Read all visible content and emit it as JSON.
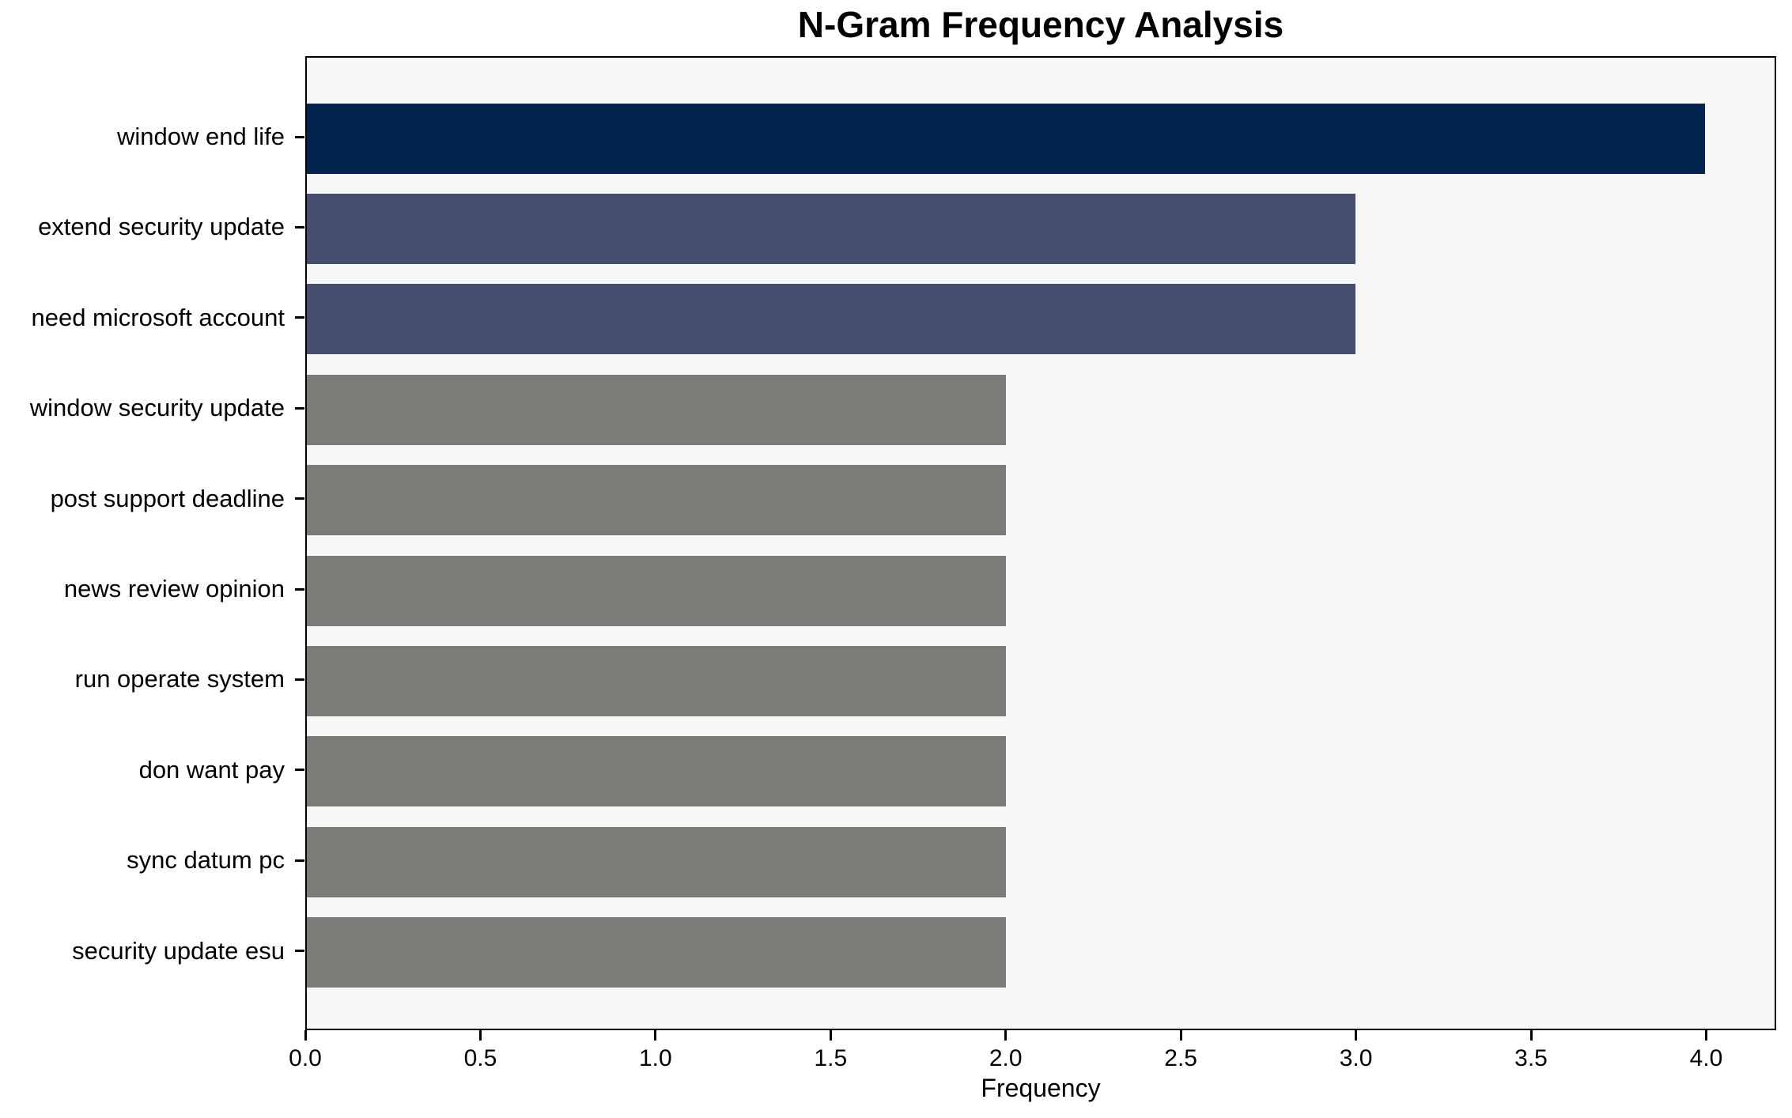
{
  "chart_data": {
    "type": "bar",
    "orientation": "horizontal",
    "title": "N-Gram Frequency Analysis",
    "xlabel": "Frequency",
    "ylabel": "",
    "categories": [
      "window end life",
      "extend security update",
      "need microsoft account",
      "window security update",
      "post support deadline",
      "news review opinion",
      "run operate system",
      "don want pay",
      "sync datum pc",
      "security update esu"
    ],
    "values": [
      4,
      3,
      3,
      2,
      2,
      2,
      2,
      2,
      2,
      2
    ],
    "xlim": [
      0,
      4.2
    ],
    "xticks": [
      0.0,
      0.5,
      1.0,
      1.5,
      2.0,
      2.5,
      3.0,
      3.5,
      4.0
    ],
    "xtick_labels": [
      "0.0",
      "0.5",
      "1.0",
      "1.5",
      "2.0",
      "2.5",
      "3.0",
      "3.5",
      "4.0"
    ],
    "bar_colors": [
      "#02244e",
      "#454f6d",
      "#454f6d",
      "#7b7b78",
      "#7b7b78",
      "#7b7b78",
      "#7b7b78",
      "#7b7b78",
      "#7b7b78",
      "#7b7b78"
    ],
    "colors": {
      "plot_background": "#f7f7f7",
      "figure_background": "#ffffff",
      "axis": "#000000",
      "text": "#000000"
    },
    "grid": false,
    "legend": null
  }
}
